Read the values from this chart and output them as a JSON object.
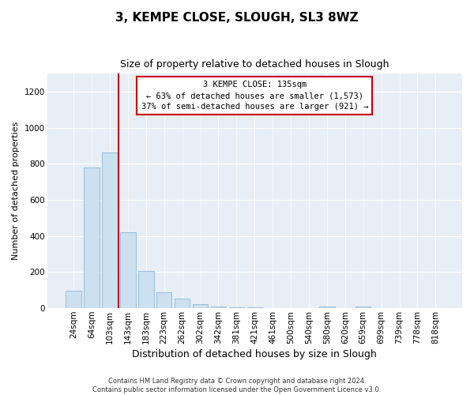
{
  "title": "3, KEMPE CLOSE, SLOUGH, SL3 8WZ",
  "subtitle": "Size of property relative to detached houses in Slough",
  "xlabel": "Distribution of detached houses by size in Slough",
  "ylabel": "Number of detached properties",
  "bar_labels": [
    "24sqm",
    "64sqm",
    "103sqm",
    "143sqm",
    "183sqm",
    "223sqm",
    "262sqm",
    "302sqm",
    "342sqm",
    "381sqm",
    "421sqm",
    "461sqm",
    "500sqm",
    "540sqm",
    "580sqm",
    "620sqm",
    "659sqm",
    "699sqm",
    "739sqm",
    "778sqm",
    "818sqm"
  ],
  "bar_values": [
    95,
    780,
    865,
    420,
    205,
    88,
    55,
    22,
    8,
    5,
    3,
    0,
    0,
    0,
    10,
    0,
    10,
    0,
    0,
    0,
    0
  ],
  "bar_color": "#cce0f0",
  "bar_edgecolor": "#8ab8d8",
  "vline_x_index": 3,
  "vline_color": "#cc0000",
  "ylim": [
    0,
    1300
  ],
  "yticks": [
    0,
    200,
    400,
    600,
    800,
    1000,
    1200
  ],
  "annotation_line1": "3 KEMPE CLOSE: 135sqm",
  "annotation_line2": "← 63% of detached houses are smaller (1,573)",
  "annotation_line3": "37% of semi-detached houses are larger (921) →",
  "footer_line1": "Contains HM Land Registry data © Crown copyright and database right 2024.",
  "footer_line2": "Contains public sector information licensed under the Open Government Licence v3.0.",
  "background_color": "#ffffff",
  "plot_bg_color": "#e8eef5",
  "grid_color": "#ffffff",
  "title_fontsize": 11,
  "subtitle_fontsize": 9,
  "xlabel_fontsize": 9,
  "ylabel_fontsize": 8,
  "tick_fontsize": 7.5,
  "footer_fontsize": 6
}
